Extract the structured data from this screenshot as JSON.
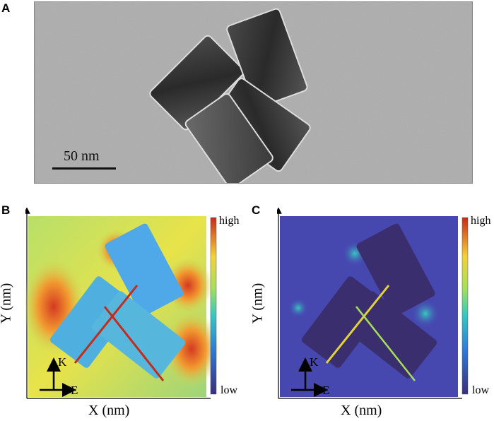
{
  "panels": {
    "a": {
      "letter": "A",
      "scale_label": "50 nm"
    },
    "b": {
      "letter": "B",
      "xlabel": "X (nm)",
      "ylabel": "Y (nm)",
      "cbar_high": "high",
      "cbar_low": "low",
      "k_label": "K",
      "e_label": "E"
    },
    "c": {
      "letter": "C",
      "xlabel": "X (nm)",
      "ylabel": "Y (nm)",
      "cbar_high": "high",
      "cbar_low": "low",
      "k_label": "K",
      "e_label": "E"
    }
  },
  "colors": {
    "tem_background": "#a9a9a9",
    "field_low": "#3b2d7a",
    "field_high": "#c62a1a"
  }
}
